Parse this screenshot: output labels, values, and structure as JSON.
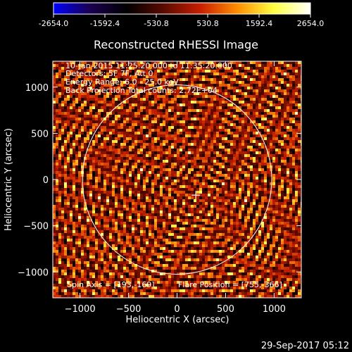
{
  "title": "Reconstructed RHESSI Image",
  "footer_timestamp": "29-Sep-2017 05:12",
  "annotations": {
    "time_range": "10-Jan-2015 11:25:20.000 to 11:35:20.000",
    "detectors": "Detectors: 5F 7F, Att 0",
    "energy": "Energy Range: 6.0 - 25.0 keV",
    "method": "Back Projection    Total counts: 2.72E+04",
    "spin_axis": "Spin Axis = [193,-169]",
    "flare_position": "Flare Position = [755,-366]"
  },
  "colorbar": {
    "ticks": [
      "-2654.0",
      "-1592.4",
      "-530.8",
      "530.8",
      "1592.4",
      "2654.0"
    ],
    "range": [
      -2654.0,
      2654.0
    ],
    "colormap": [
      "#0000ff",
      "#1a0050",
      "#000000",
      "#5a0a00",
      "#c81e00",
      "#ff8c00",
      "#ffff40",
      "#ffffff"
    ]
  },
  "chart_data": {
    "type": "heatmap",
    "title": "Reconstructed RHESSI Image",
    "xlabel": "Heliocentric X (arcsec)",
    "ylabel": "Heliocentric Y (arcsec)",
    "xlim": [
      -1280,
      1280
    ],
    "ylim": [
      -1280,
      1280
    ],
    "x_ticks": [
      -1000,
      -500,
      0,
      500,
      1000
    ],
    "y_ticks": [
      -1000,
      -500,
      0,
      500,
      1000
    ],
    "value_range": [
      -2654.0,
      2654.0
    ],
    "solar_limb_radius_arcsec": 975,
    "marker": {
      "type": "plus",
      "x": 193,
      "y": -169
    },
    "description": "back-projection pattern of bright/dark blobs over the full field"
  }
}
